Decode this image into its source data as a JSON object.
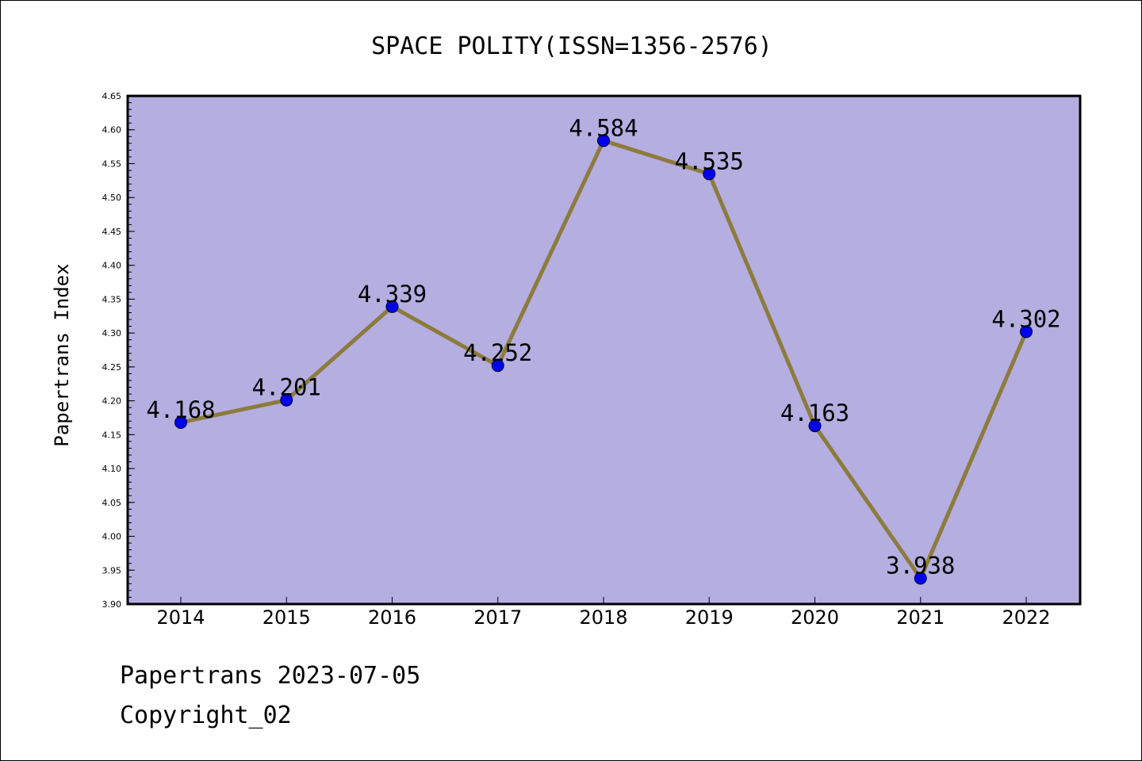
{
  "chart_data": {
    "type": "line",
    "title": "SPACE POLITY(ISSN=1356-2576)",
    "xlabel": "",
    "ylabel": "Papertrans Index",
    "categories": [
      "2014",
      "2015",
      "2016",
      "2017",
      "2018",
      "2019",
      "2020",
      "2021",
      "2022"
    ],
    "series": [
      {
        "values": [
          4.168,
          4.201,
          4.339,
          4.252,
          4.584,
          4.535,
          4.163,
          3.938,
          4.302
        ],
        "labels": [
          "4.168",
          "4.201",
          "4.339",
          "4.252",
          "4.584",
          "4.535",
          "4.163",
          "3.938",
          "4.302"
        ]
      }
    ],
    "ylim": [
      3.9,
      4.65
    ],
    "yticks": [
      "3.90",
      "3.95",
      "4.00",
      "4.05",
      "4.10",
      "4.15",
      "4.20",
      "4.25",
      "4.30",
      "4.35",
      "4.40",
      "4.45",
      "4.50",
      "4.55",
      "4.60",
      "4.65"
    ],
    "grid": false,
    "colors": {
      "plot_background": "#b5aee1",
      "line": "#8c7b3c",
      "marker": "#0000ee",
      "marker_edge": "#000033"
    }
  },
  "footer": {
    "line1": "Papertrans 2023-07-05",
    "line2": "Copyright_02"
  }
}
